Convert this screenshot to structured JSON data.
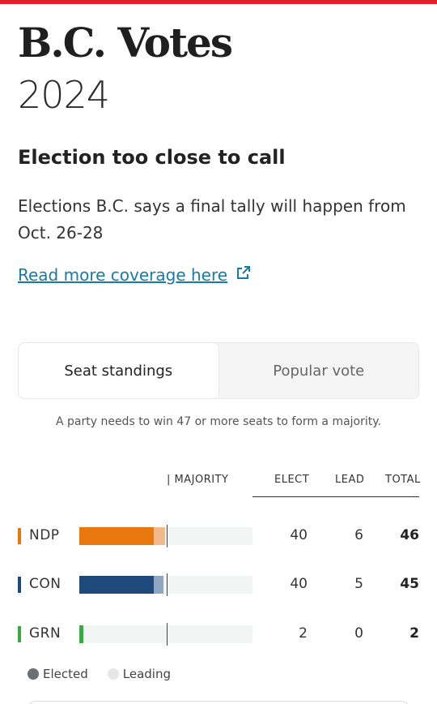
{
  "header": {
    "title": "B.C. Votes",
    "year": "2024"
  },
  "notice": {
    "headline": "Election too close to call",
    "description": "Elections B.C. says a final tally will happen from Oct. 26-28",
    "link_label": "Read more coverage here",
    "link_icon": "external-link-icon"
  },
  "tabs": [
    {
      "label": "Seat standings",
      "active": true
    },
    {
      "label": "Popular vote",
      "active": false
    }
  ],
  "majority_note": "A party needs to win 47 or more seats to form a majority.",
  "table": {
    "majority_label": "| MAJORITY",
    "columns": [
      "ELECT",
      "LEAD",
      "TOTAL"
    ],
    "majority_seats": 47,
    "total_seats": 93,
    "rows": [
      {
        "party": "NDP",
        "color": "#e8770e",
        "lead_color": "#f2b98a",
        "elected": "40",
        "leading": "6",
        "total": "46",
        "elected_n": 40,
        "leading_n": 6
      },
      {
        "party": "CON",
        "color": "#1d4a7a",
        "lead_color": "#8fa6c2",
        "elected": "40",
        "leading": "5",
        "total": "45",
        "elected_n": 40,
        "leading_n": 5
      },
      {
        "party": "GRN",
        "color": "#3aa845",
        "lead_color": "#a8d9ad",
        "elected": "2",
        "leading": "0",
        "total": "2",
        "elected_n": 2,
        "leading_n": 0
      }
    ]
  },
  "legend": [
    {
      "label": "Elected",
      "color": "#6b6f73"
    },
    {
      "label": "Leading",
      "color": "#e5e7e6"
    }
  ],
  "colors": {
    "accent_bar": "#e0202a",
    "link": "#1a7aa6"
  }
}
